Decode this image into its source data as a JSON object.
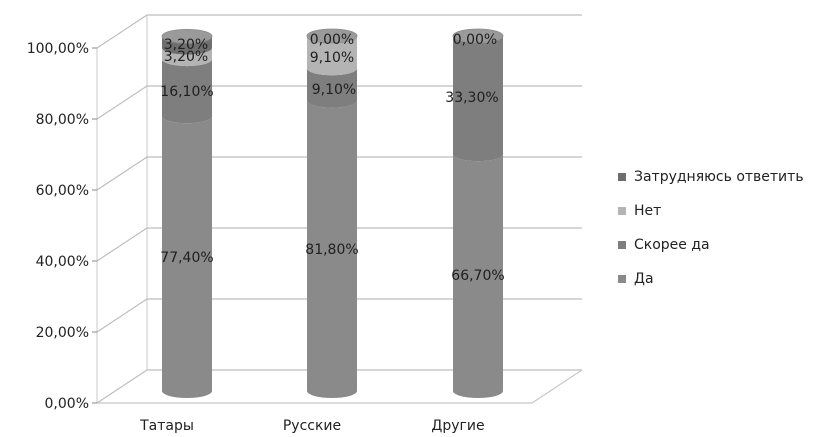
{
  "chart_data": {
    "type": "bar",
    "stacked": true,
    "three_d_cylinders": true,
    "categories": [
      "Татары",
      "Русские",
      "Другие"
    ],
    "series": [
      {
        "name": "Да",
        "values": [
          77.4,
          81.8,
          66.7
        ],
        "labels": [
          "77,40%",
          "81,80%",
          "66,70%"
        ],
        "color": "#8a8a8a"
      },
      {
        "name": "Скорее да",
        "values": [
          16.1,
          9.1,
          33.3
        ],
        "labels": [
          "16,10%",
          "9,10%",
          "33,30%"
        ],
        "color": "#7e7e7e"
      },
      {
        "name": "Нет",
        "values": [
          3.2,
          9.1,
          0.0
        ],
        "labels": [
          "3,20%",
          "9,10%",
          ""
        ],
        "color": "#b4b4b4"
      },
      {
        "name": "Затрудняюсь ответить",
        "values": [
          3.2,
          0.0,
          0.0
        ],
        "labels": [
          "3,20%",
          "0,00%",
          "0,00%"
        ],
        "color": "#6e6e6e"
      }
    ],
    "y_ticks": [
      "0,00%",
      "20,00%",
      "40,00%",
      "60,00%",
      "80,00%",
      "100,00%"
    ],
    "ylim": [
      0,
      100
    ],
    "grid": true,
    "legend_position": "right"
  }
}
